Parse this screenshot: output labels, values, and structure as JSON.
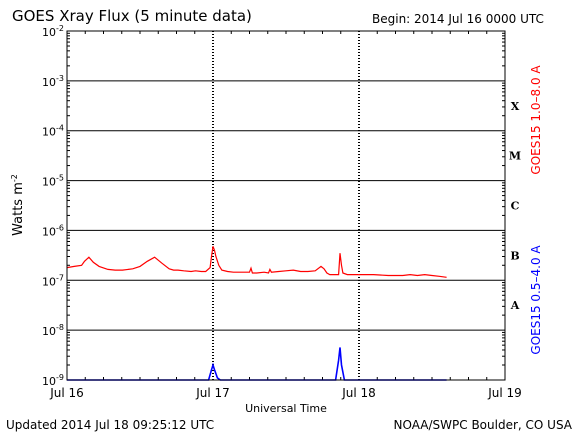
{
  "header": {
    "title": "GOES Xray Flux (5 minute data)",
    "begin": "Begin:  2014 Jul 16 0000 UTC"
  },
  "footer": {
    "updated": "Updated 2014 Jul 18 09:25:12 UTC",
    "credit": "NOAA/SWPC Boulder, CO USA"
  },
  "chart_data": {
    "type": "line",
    "title": "GOES Xray Flux (5 minute data)",
    "xlabel": "Universal Time",
    "ylabel": "Watts m-2",
    "ylabel_display": {
      "base": "Watts m",
      "sup": "-2"
    },
    "yscale": "log",
    "ylim": [
      1e-09,
      0.01
    ],
    "xlim_days": [
      0,
      3
    ],
    "x_ticks": [
      "Jul 16",
      "Jul 17",
      "Jul 18",
      "Jul 19"
    ],
    "y_ticks": [
      {
        "value": 0.01,
        "base": "10",
        "exp": "-2"
      },
      {
        "value": 0.001,
        "base": "10",
        "exp": "-3"
      },
      {
        "value": 0.0001,
        "base": "10",
        "exp": "-4"
      },
      {
        "value": 1e-05,
        "base": "10",
        "exp": "-5"
      },
      {
        "value": 1e-06,
        "base": "10",
        "exp": "-6"
      },
      {
        "value": 1e-07,
        "base": "10",
        "exp": "-7"
      },
      {
        "value": 1e-08,
        "base": "10",
        "exp": "-8"
      },
      {
        "value": 1e-09,
        "base": "10",
        "exp": "-9"
      }
    ],
    "flare_classes": [
      "X",
      "M",
      "C",
      "B",
      "A"
    ],
    "grid": true,
    "series": [
      {
        "name": "GOES15 1.0–8.0 A",
        "color": "#ff0000",
        "x": [
          0.0,
          0.05,
          0.1,
          0.12,
          0.15,
          0.18,
          0.22,
          0.28,
          0.33,
          0.38,
          0.42,
          0.45,
          0.5,
          0.55,
          0.6,
          0.65,
          0.7,
          0.73,
          0.76,
          0.8,
          0.85,
          0.88,
          0.92,
          0.95,
          0.98,
          0.99,
          1.0,
          1.01,
          1.02,
          1.04,
          1.06,
          1.1,
          1.14,
          1.18,
          1.22,
          1.25,
          1.26,
          1.27,
          1.3,
          1.35,
          1.38,
          1.39,
          1.4,
          1.45,
          1.5,
          1.55,
          1.6,
          1.65,
          1.7,
          1.74,
          1.76,
          1.78,
          1.8,
          1.84,
          1.86,
          1.87,
          1.88,
          1.89,
          1.92,
          1.96,
          2.0,
          2.1,
          2.2,
          2.3,
          2.35,
          2.4,
          2.45,
          2.5,
          2.55,
          2.6
        ],
        "values": [
          1.8e-07,
          1.9e-07,
          2e-07,
          2.4e-07,
          2.9e-07,
          2.3e-07,
          1.9e-07,
          1.65e-07,
          1.6e-07,
          1.6e-07,
          1.65e-07,
          1.7e-07,
          1.9e-07,
          2.4e-07,
          2.9e-07,
          2.2e-07,
          1.7e-07,
          1.6e-07,
          1.6e-07,
          1.55e-07,
          1.5e-07,
          1.55e-07,
          1.5e-07,
          1.5e-07,
          1.8e-07,
          3e-07,
          4.8e-07,
          4e-07,
          3e-07,
          2e-07,
          1.6e-07,
          1.5e-07,
          1.45e-07,
          1.45e-07,
          1.45e-07,
          1.45e-07,
          1.75e-07,
          1.4e-07,
          1.4e-07,
          1.45e-07,
          1.4e-07,
          1.65e-07,
          1.45e-07,
          1.5e-07,
          1.55e-07,
          1.6e-07,
          1.5e-07,
          1.5e-07,
          1.55e-07,
          1.9e-07,
          1.7e-07,
          1.4e-07,
          1.3e-07,
          1.3e-07,
          1.3e-07,
          3.5e-07,
          2e-07,
          1.4e-07,
          1.3e-07,
          1.3e-07,
          1.3e-07,
          1.3e-07,
          1.25e-07,
          1.25e-07,
          1.3e-07,
          1.25e-07,
          1.3e-07,
          1.25e-07,
          1.2e-07,
          1.15e-07
        ]
      },
      {
        "name": "GOES15 0.5–4.0 A",
        "color": "#0000ff",
        "x": [
          0.0,
          0.5,
          0.97,
          0.99,
          1.0,
          1.01,
          1.03,
          1.05,
          1.5,
          1.84,
          1.86,
          1.87,
          1.88,
          1.9,
          2.3,
          2.6
        ],
        "values": [
          1e-09,
          1e-09,
          1e-09,
          1.6e-09,
          2e-09,
          1.6e-09,
          1.1e-09,
          1e-09,
          1e-09,
          1e-09,
          2.5e-09,
          4.5e-09,
          2e-09,
          1e-09,
          1e-09,
          1e-09
        ]
      }
    ]
  }
}
